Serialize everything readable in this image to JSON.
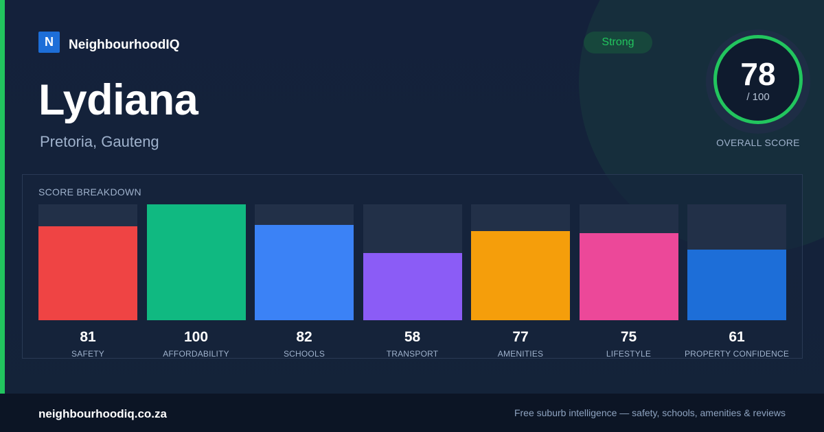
{
  "brand": {
    "logo_letter": "N",
    "name": "NeighbourhoodIQ"
  },
  "suburb": {
    "name": "Lydiana",
    "location": "Pretoria, Gauteng"
  },
  "rating": {
    "badge": "Strong",
    "score": "78",
    "max": "/ 100",
    "label": "OVERALL SCORE"
  },
  "breakdown": {
    "title": "SCORE BREAKDOWN",
    "items": [
      {
        "label": "SAFETY",
        "value": "81",
        "score": 81,
        "color": "#ef4444"
      },
      {
        "label": "AFFORDABILITY",
        "value": "100",
        "score": 100,
        "color": "#10b981"
      },
      {
        "label": "SCHOOLS",
        "value": "82",
        "score": 82,
        "color": "#3b82f6"
      },
      {
        "label": "TRANSPORT",
        "value": "58",
        "score": 58,
        "color": "#8b5cf6"
      },
      {
        "label": "AMENITIES",
        "value": "77",
        "score": 77,
        "color": "#f59e0b"
      },
      {
        "label": "LIFESTYLE",
        "value": "75",
        "score": 75,
        "color": "#ec4899"
      },
      {
        "label": "PROPERTY CONFIDENCE",
        "value": "61",
        "score": 61,
        "color": "#1d6ed8"
      }
    ]
  },
  "footer": {
    "site": "neighbourhoodiq.co.za",
    "tagline": "Free suburb intelligence — safety, schools, amenities & reviews"
  },
  "colors": {
    "accent": "#22c55e",
    "background": "#13203a",
    "brand": "#1d6ed8"
  }
}
